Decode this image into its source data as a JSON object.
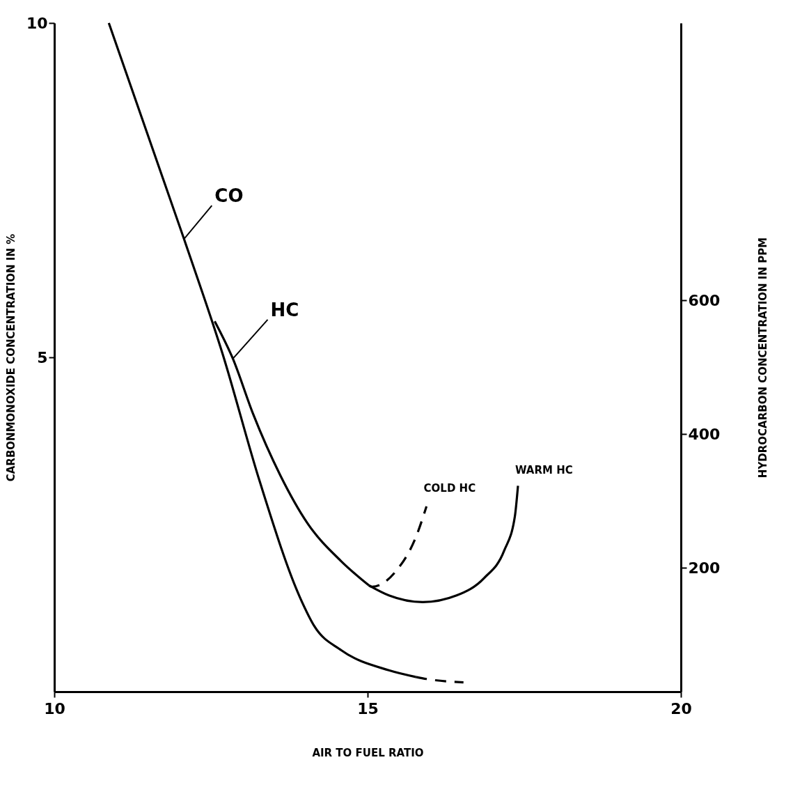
{
  "chart_data": {
    "type": "line",
    "xlabel": "AIR TO FUEL RATIO",
    "ylabel": "CARBONMONOXIDE CONCENTRATION IN %",
    "y2label": "HYDROCARBON CONCENTRATION IN PPM",
    "xlim": [
      10,
      20
    ],
    "xticks": [
      10,
      15,
      20
    ],
    "ylim": [
      0,
      10
    ],
    "yticks": [
      5,
      10
    ],
    "y2lim": [
      15,
      1015
    ],
    "y2ticks": [
      200,
      400,
      600
    ],
    "grid": false,
    "series": [
      {
        "name": "CO",
        "color": "#000000",
        "line_style": "solid",
        "x": [
          10.87,
          12.07,
          12.69,
          13.28,
          13.93,
          14.15,
          14.58,
          15.34,
          15.77
        ],
        "values": [
          10.0,
          6.77,
          5.04,
          3.14,
          1.39,
          0.98,
          0.62,
          0.32,
          0.22
        ]
      },
      {
        "color": "#000000",
        "line_style": "dashed",
        "x": [
          15.77,
          15.94,
          16.53
        ],
        "values": [
          0.22,
          0.19,
          0.14
        ]
      },
      {
        "name": "HC",
        "axis": "y2",
        "color": "#000000",
        "line_style": "solid",
        "x": [
          12.56,
          12.85,
          13.17,
          13.61,
          14.04,
          14.58,
          15.02
        ],
        "values": [
          569,
          513,
          431,
          338,
          267,
          210,
          174
        ]
      },
      {
        "name": "WARM HC",
        "axis": "y2",
        "color": "#000000",
        "line_style": "solid",
        "x": [
          15.02,
          15.34,
          15.88,
          16.42,
          16.86,
          17.18,
          17.35,
          17.4
        ],
        "values": [
          174,
          159,
          149,
          159,
          185,
          226,
          277,
          323
        ]
      },
      {
        "name": "COLD HC",
        "axis": "y2",
        "color": "#000000",
        "line_style": "dashed",
        "x": [
          15.02,
          15.07,
          15.45,
          15.77,
          15.94
        ],
        "values": [
          174,
          172,
          195,
          246,
          292
        ]
      }
    ]
  }
}
